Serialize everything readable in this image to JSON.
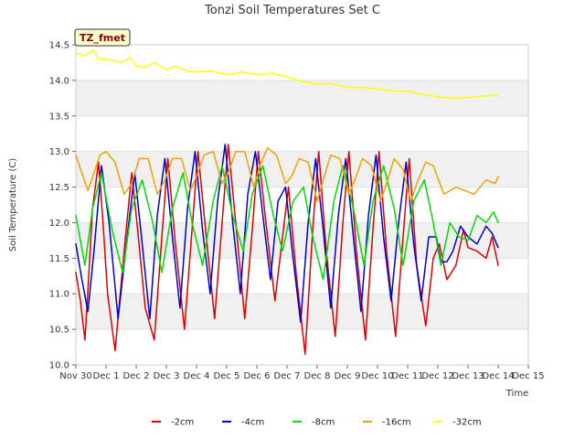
{
  "chart_data": {
    "type": "line",
    "title": "Tonzi Soil Temperatures Set C",
    "xlabel": "Time",
    "ylabel": "Soil Temperature (C)",
    "site_tag": "TZ_fmet",
    "xlim": [
      0,
      15
    ],
    "ylim": [
      10.0,
      14.5
    ],
    "yticks": [
      10.0,
      10.5,
      11.0,
      11.5,
      12.0,
      12.5,
      13.0,
      13.5,
      14.0,
      14.5
    ],
    "ytick_labels": [
      "10.0",
      "10.5",
      "11.0",
      "11.5",
      "12.0",
      "12.5",
      "13.0",
      "13.5",
      "14.0",
      "14.5"
    ],
    "xticks": [
      0,
      1,
      2,
      3,
      4,
      5,
      6,
      7,
      8,
      9,
      10,
      11,
      12,
      13,
      14,
      15
    ],
    "xtick_labels": [
      "Nov 30",
      "Dec 1",
      "Dec 2",
      "Dec 3",
      "Dec 4",
      "Dec 5",
      "Dec 6",
      "Dec 7",
      "Dec 8",
      "Dec 9",
      "Dec 10",
      "Dec 11",
      "Dec 12",
      "Dec 13",
      "Dec 14",
      "Dec 15"
    ],
    "grid": "horizontal bands",
    "band_color": "#f0f0f0",
    "legend_position": "bottom",
    "series": [
      {
        "name": "-2cm",
        "color": "#dd0000",
        "x": [
          0.0,
          0.15,
          0.3,
          0.38,
          0.55,
          0.75,
          0.9,
          1.05,
          1.3,
          1.6,
          1.85,
          2.05,
          2.3,
          2.6,
          2.85,
          3.05,
          3.3,
          3.6,
          3.85,
          4.05,
          4.3,
          4.6,
          4.85,
          5.05,
          5.3,
          5.6,
          5.85,
          6.05,
          6.3,
          6.6,
          6.85,
          7.05,
          7.3,
          7.6,
          7.85,
          8.05,
          8.3,
          8.6,
          8.85,
          9.05,
          9.3,
          9.6,
          9.85,
          10.05,
          10.3,
          10.6,
          10.85,
          11.05,
          11.3,
          11.6,
          11.85,
          12.05,
          12.3,
          12.6,
          12.85,
          13.0,
          13.3,
          13.6,
          13.8,
          14.0
        ],
        "y": [
          11.3,
          10.9,
          10.35,
          10.9,
          12.2,
          12.85,
          12.0,
          11.0,
          10.2,
          11.6,
          12.7,
          11.9,
          10.8,
          10.35,
          11.8,
          12.9,
          11.7,
          10.5,
          11.9,
          13.0,
          11.9,
          10.65,
          12.0,
          13.1,
          12.0,
          10.65,
          11.9,
          13.0,
          12.0,
          10.9,
          11.8,
          12.5,
          11.3,
          10.15,
          11.9,
          13.0,
          11.6,
          10.4,
          12.0,
          13.0,
          11.6,
          10.35,
          11.9,
          13.0,
          11.6,
          10.4,
          11.8,
          12.9,
          11.4,
          10.55,
          11.5,
          11.7,
          11.2,
          11.4,
          11.9,
          11.65,
          11.6,
          11.5,
          11.8,
          11.4
        ]
      },
      {
        "name": "-4cm",
        "color": "#0000cc",
        "x": [
          0.0,
          0.2,
          0.4,
          0.6,
          0.85,
          1.1,
          1.4,
          1.7,
          1.95,
          2.2,
          2.45,
          2.7,
          2.95,
          3.2,
          3.45,
          3.7,
          3.95,
          4.2,
          4.45,
          4.7,
          4.95,
          5.2,
          5.45,
          5.7,
          5.95,
          6.2,
          6.45,
          6.7,
          6.95,
          7.2,
          7.45,
          7.7,
          7.95,
          8.2,
          8.45,
          8.7,
          8.95,
          9.2,
          9.45,
          9.7,
          9.95,
          10.2,
          10.45,
          10.7,
          10.95,
          11.2,
          11.45,
          11.7,
          11.95,
          12.1,
          12.3,
          12.5,
          12.75,
          13.0,
          13.3,
          13.6,
          13.8,
          14.0
        ],
        "y": [
          11.7,
          11.2,
          10.75,
          11.6,
          12.8,
          12.0,
          10.65,
          11.8,
          12.7,
          11.7,
          10.65,
          12.1,
          12.9,
          11.8,
          10.8,
          12.2,
          13.0,
          11.9,
          11.0,
          12.3,
          13.1,
          12.0,
          11.0,
          12.4,
          13.0,
          12.1,
          11.2,
          12.3,
          12.5,
          11.5,
          10.6,
          12.0,
          12.9,
          11.9,
          10.8,
          12.1,
          12.9,
          11.8,
          10.75,
          12.1,
          12.95,
          11.8,
          10.9,
          12.0,
          12.85,
          11.7,
          10.9,
          11.8,
          11.8,
          11.45,
          11.45,
          11.6,
          11.95,
          11.8,
          11.7,
          11.95,
          11.85,
          11.65
        ]
      },
      {
        "name": "-8cm",
        "color": "#00dd00",
        "x": [
          0.0,
          0.3,
          0.55,
          0.85,
          1.2,
          1.55,
          1.85,
          2.2,
          2.55,
          2.85,
          3.2,
          3.55,
          3.85,
          4.2,
          4.55,
          4.85,
          5.2,
          5.55,
          5.85,
          6.2,
          6.55,
          6.85,
          7.2,
          7.55,
          7.85,
          8.2,
          8.55,
          8.85,
          9.2,
          9.55,
          9.85,
          10.2,
          10.55,
          10.85,
          11.2,
          11.55,
          11.85,
          12.1,
          12.4,
          12.7,
          13.0,
          13.3,
          13.6,
          13.85,
          14.0
        ],
        "y": [
          12.1,
          11.4,
          12.2,
          12.7,
          11.9,
          11.3,
          12.2,
          12.6,
          12.0,
          11.3,
          12.2,
          12.7,
          12.0,
          11.4,
          12.3,
          12.8,
          12.1,
          11.6,
          12.4,
          12.8,
          12.1,
          11.6,
          12.3,
          12.5,
          11.8,
          11.2,
          12.3,
          12.8,
          12.2,
          11.4,
          12.3,
          12.8,
          12.2,
          11.4,
          12.3,
          12.6,
          12.0,
          11.4,
          12.0,
          11.8,
          11.75,
          12.1,
          12.0,
          12.15,
          12.0
        ]
      },
      {
        "name": "-16cm",
        "color": "#f5a000",
        "x": [
          0.0,
          0.2,
          0.4,
          0.6,
          0.8,
          1.0,
          1.3,
          1.6,
          1.85,
          2.1,
          2.4,
          2.7,
          2.95,
          3.2,
          3.5,
          3.8,
          4.0,
          4.25,
          4.55,
          4.85,
          5.05,
          5.3,
          5.6,
          5.9,
          6.1,
          6.35,
          6.65,
          6.95,
          7.15,
          7.4,
          7.7,
          8.0,
          8.2,
          8.45,
          8.75,
          9.05,
          9.25,
          9.5,
          9.8,
          10.1,
          10.3,
          10.55,
          10.85,
          11.1,
          11.35,
          11.6,
          11.85,
          12.2,
          12.6,
          12.9,
          13.2,
          13.6,
          13.9,
          14.0
        ],
        "y": [
          12.95,
          12.7,
          12.45,
          12.7,
          12.95,
          13.0,
          12.85,
          12.4,
          12.55,
          12.9,
          12.9,
          12.4,
          12.6,
          12.9,
          12.9,
          12.45,
          12.65,
          12.95,
          13.0,
          12.55,
          12.7,
          13.0,
          13.0,
          12.5,
          12.8,
          13.05,
          12.95,
          12.55,
          12.65,
          12.9,
          12.85,
          12.3,
          12.6,
          12.95,
          12.9,
          12.4,
          12.6,
          12.9,
          12.8,
          12.3,
          12.55,
          12.9,
          12.75,
          12.3,
          12.6,
          12.85,
          12.8,
          12.4,
          12.5,
          12.45,
          12.4,
          12.6,
          12.55,
          12.65
        ]
      },
      {
        "name": "-32cm",
        "color": "#ffff00",
        "x": [
          0.0,
          0.3,
          0.6,
          0.75,
          1.0,
          1.5,
          1.8,
          2.0,
          2.3,
          2.6,
          3.0,
          3.3,
          3.7,
          4.0,
          4.5,
          5.0,
          5.5,
          6.0,
          6.5,
          6.8,
          7.0,
          7.5,
          8.0,
          8.5,
          9.0,
          9.5,
          10.0,
          10.5,
          11.0,
          11.5,
          12.0,
          12.5,
          13.0,
          13.5,
          14.0
        ],
        "y": [
          14.38,
          14.35,
          14.42,
          14.3,
          14.3,
          14.25,
          14.32,
          14.2,
          14.18,
          14.25,
          14.15,
          14.2,
          14.13,
          14.12,
          14.13,
          14.08,
          14.12,
          14.08,
          14.1,
          14.07,
          14.05,
          13.98,
          13.95,
          13.95,
          13.9,
          13.9,
          13.88,
          13.85,
          13.85,
          13.8,
          13.77,
          13.75,
          13.76,
          13.78,
          13.79
        ]
      }
    ]
  }
}
